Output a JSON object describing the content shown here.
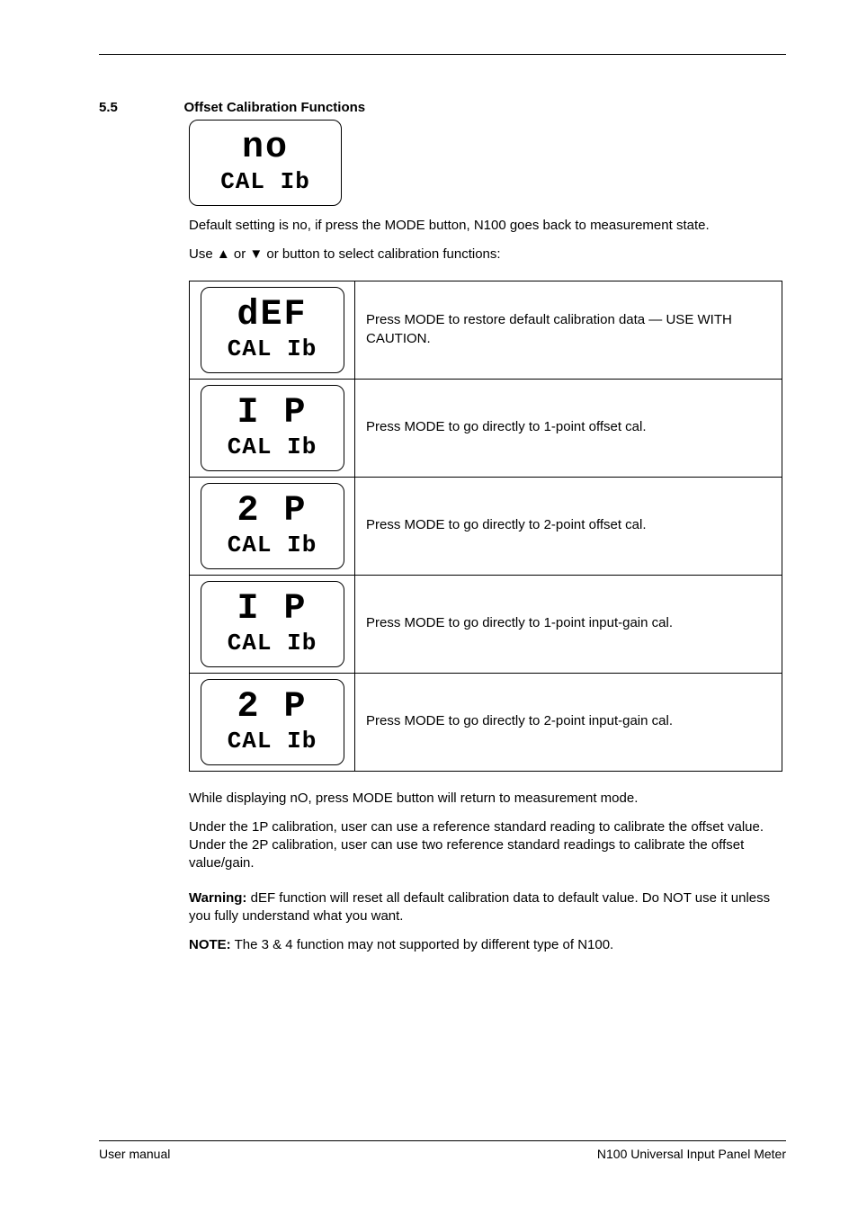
{
  "header": {
    "rule": true
  },
  "section": {
    "number": "5.5",
    "title": "Offset Calibration Functions"
  },
  "intro_lcd": {
    "top": "no",
    "bottom": "CAL Ib"
  },
  "paragraph1": "Default setting is no, if press the MODE button, N100 goes back to measurement state.",
  "paragraph2_prefix": "Use ",
  "paragraph2_suffix": " or  button to select calibration functions:",
  "arrow_up": "▲",
  "arrow_or": " or ",
  "arrow_down": "▼",
  "table": {
    "rows": [
      {
        "lcd_top": "dEF",
        "lcd_bottom": "CAL Ib",
        "desc": "Press MODE to restore default calibration data — USE WITH CAUTION."
      },
      {
        "lcd_top": "I P",
        "lcd_bottom": "CAL Ib",
        "desc": "Press MODE to go directly to 1-point offset cal."
      },
      {
        "lcd_top": "2 P",
        "lcd_bottom": "CAL Ib",
        "desc": "Press MODE to go directly to 2-point offset cal."
      },
      {
        "lcd_top": "I P",
        "lcd_bottom": "CAL Ib",
        "desc": "Press MODE to go directly to 1-point input-gain cal."
      },
      {
        "lcd_top": "2 P",
        "lcd_bottom": "CAL Ib",
        "desc": "Press MODE to go directly to 2-point input-gain cal."
      }
    ]
  },
  "after1": "While displaying nO, press MODE button will return to measurement mode.",
  "after2": "Under the 1P calibration, user can use a reference standard reading to calibrate the offset value. Under the 2P calibration, user can use two reference standard readings to calibrate the offset value/gain.",
  "warning_label": "Warning:",
  "warning_text": " dEF function will reset all default calibration data to default value. Do NOT use it unless you fully understand what you want.",
  "note_label": "NOTE:",
  "note_text": " The 3 & 4 function may not supported by different type of N100.",
  "footer": {
    "left": "User manual",
    "right": "N100 Universal Input Panel Meter"
  }
}
